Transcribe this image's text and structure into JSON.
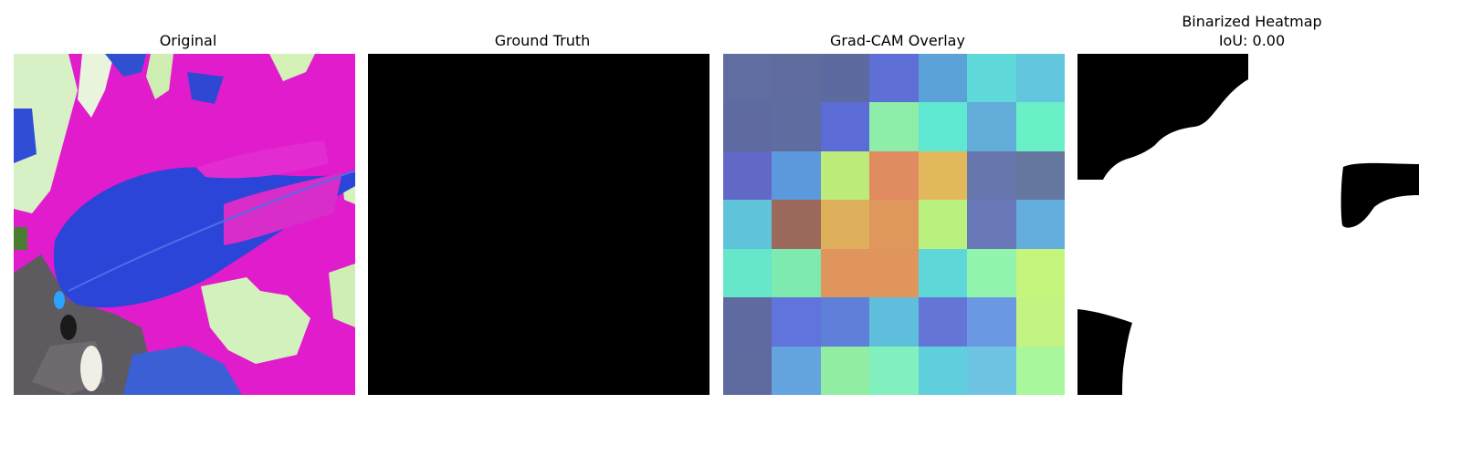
{
  "panels": [
    {
      "title": "Original"
    },
    {
      "title": "Ground Truth"
    },
    {
      "title": "Grad-CAM Overlay"
    },
    {
      "title": "Binarized Heatmap",
      "subtitle": "IoU: 0.00"
    }
  ],
  "colors": {
    "background": "#ffffff",
    "mask_fill": "#000000",
    "heatmap_fill": "#ffffff",
    "orig_magenta": "#e11ccc",
    "orig_blue": "#2a45d8",
    "orig_pale_green": "#d6f3c0",
    "orig_gray": "#5d5a60"
  },
  "gradcam_grid": [
    [
      "#5f6da0",
      "#606c9e",
      "#5c6aa0",
      "#5e6fd6",
      "#5aa2d8",
      "#5fd8d9",
      "#62c6de"
    ],
    [
      "#5f6ba0",
      "#5f6ca0",
      "#5b6cd7",
      "#8fedaa",
      "#5ee8d2",
      "#62acd9",
      "#6af0c6"
    ],
    [
      "#6168c6",
      "#5c98dc",
      "#bdeb7a",
      "#e08b60",
      "#e2b85c",
      "#6777ae",
      "#65779f"
    ],
    [
      "#5fc4d9",
      "#9b6a5c",
      "#dfb05c",
      "#e0975c",
      "#b9f07e",
      "#6777b8",
      "#63aedd"
    ],
    [
      "#67e7c9",
      "#7eeab0",
      "#e0955c",
      "#e0955c",
      "#5dd7d8",
      "#92f5ad",
      "#c6f57d"
    ],
    [
      "#5f6ba0",
      "#6173dc",
      "#5e80d8",
      "#5fbedc",
      "#6475d6",
      "#6b98e2",
      "#c3f483"
    ],
    [
      "#5f6b9f",
      "#64a4df",
      "#91eda1",
      "#82f0be",
      "#5fcfdd",
      "#6fc4e4",
      "#a9f79c"
    ]
  ]
}
